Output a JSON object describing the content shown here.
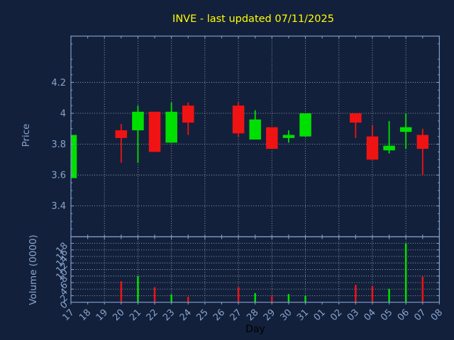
{
  "title": "INVE - last updated 07/11/2025",
  "colors": {
    "background": "#13203B",
    "axis": "#7E9CC6",
    "tick_label": "#87A4CC",
    "grid": "#B7C0CA",
    "up": "#00E000",
    "down": "#F01313",
    "title": "#FFFF00",
    "x_axis_title": "#000000"
  },
  "price_axis": {
    "label": "Price",
    "tick_labels": [
      "4.2",
      "4",
      "3.8",
      "3.6",
      "3.4"
    ],
    "tick_values": [
      4.2,
      4.0,
      3.8,
      3.6,
      3.4
    ]
  },
  "volume_axis": {
    "label": "Volume (0000)",
    "tick_labels": [
      "18",
      "16",
      "14",
      "12",
      "10",
      "8",
      "6",
      "4",
      "2",
      "0"
    ],
    "tick_values": [
      18,
      16,
      14,
      12,
      10,
      8,
      6,
      4,
      2,
      0
    ]
  },
  "x_axis": {
    "label": "Day",
    "categories": [
      "17",
      "18",
      "19",
      "20",
      "21",
      "22",
      "23",
      "24",
      "25",
      "26",
      "27",
      "28",
      "29",
      "30",
      "31",
      "01",
      "02",
      "03",
      "04",
      "05",
      "06",
      "07",
      "08"
    ],
    "gridline_categories": [
      "19",
      "21",
      "23",
      "25",
      "27",
      "29",
      "31",
      "02",
      "04",
      "06",
      "08"
    ]
  },
  "chart_data": {
    "type": "candlestick-with-volume",
    "title": "INVE - last updated 07/11/2025",
    "xlabel": "Day",
    "price_ylabel": "Price",
    "volume_ylabel": "Volume (0000)",
    "price_ylim": [
      3.2,
      4.5
    ],
    "volume_ylim": [
      0,
      20
    ],
    "grid": true,
    "x": [
      "17",
      "18",
      "19",
      "20",
      "21",
      "22",
      "23",
      "24",
      "25",
      "26",
      "27",
      "28",
      "29",
      "30",
      "31",
      "01",
      "02",
      "03",
      "04",
      "05",
      "06",
      "07",
      "08"
    ],
    "candles": [
      {
        "day": "17",
        "open": 3.58,
        "high": 3.86,
        "low": 3.58,
        "close": 3.86,
        "volume": 0,
        "direction": "up"
      },
      {
        "day": "20",
        "open": 3.89,
        "high": 3.93,
        "low": 3.68,
        "close": 3.84,
        "volume": 6.4,
        "direction": "down"
      },
      {
        "day": "21",
        "open": 3.89,
        "high": 4.05,
        "low": 3.68,
        "close": 4.01,
        "volume": 8.0,
        "direction": "up"
      },
      {
        "day": "22",
        "open": 4.01,
        "high": 4.01,
        "low": 3.75,
        "close": 3.75,
        "volume": 4.6,
        "direction": "down"
      },
      {
        "day": "23",
        "open": 3.81,
        "high": 4.07,
        "low": 3.81,
        "close": 4.01,
        "volume": 2.4,
        "direction": "up"
      },
      {
        "day": "24",
        "open": 4.05,
        "high": 4.07,
        "low": 3.86,
        "close": 3.94,
        "volume": 1.7,
        "direction": "down"
      },
      {
        "day": "27",
        "open": 4.05,
        "high": 4.07,
        "low": 3.85,
        "close": 3.87,
        "volume": 4.6,
        "direction": "down"
      },
      {
        "day": "28",
        "open": 3.83,
        "high": 4.02,
        "low": 3.83,
        "close": 3.96,
        "volume": 2.8,
        "direction": "up"
      },
      {
        "day": "29",
        "open": 3.91,
        "high": 3.91,
        "low": 3.77,
        "close": 3.77,
        "volume": 1.8,
        "direction": "down"
      },
      {
        "day": "30",
        "open": 3.84,
        "high": 3.89,
        "low": 3.81,
        "close": 3.86,
        "volume": 2.5,
        "direction": "up"
      },
      {
        "day": "31",
        "open": 3.85,
        "high": 4.0,
        "low": 3.85,
        "close": 4.0,
        "volume": 2.0,
        "direction": "up"
      },
      {
        "day": "03",
        "open": 4.0,
        "high": 4.0,
        "low": 3.84,
        "close": 3.94,
        "volume": 5.3,
        "direction": "down"
      },
      {
        "day": "04",
        "open": 3.85,
        "high": 3.92,
        "low": 3.7,
        "close": 3.7,
        "volume": 4.9,
        "direction": "down"
      },
      {
        "day": "05",
        "open": 3.76,
        "high": 3.95,
        "low": 3.74,
        "close": 3.79,
        "volume": 4.1,
        "direction": "up"
      },
      {
        "day": "06",
        "open": 3.88,
        "high": 4.0,
        "low": 3.77,
        "close": 3.91,
        "volume": 18.0,
        "direction": "up"
      },
      {
        "day": "07",
        "open": 3.86,
        "high": 3.9,
        "low": 3.6,
        "close": 3.77,
        "volume": 7.8,
        "direction": "down"
      }
    ]
  }
}
